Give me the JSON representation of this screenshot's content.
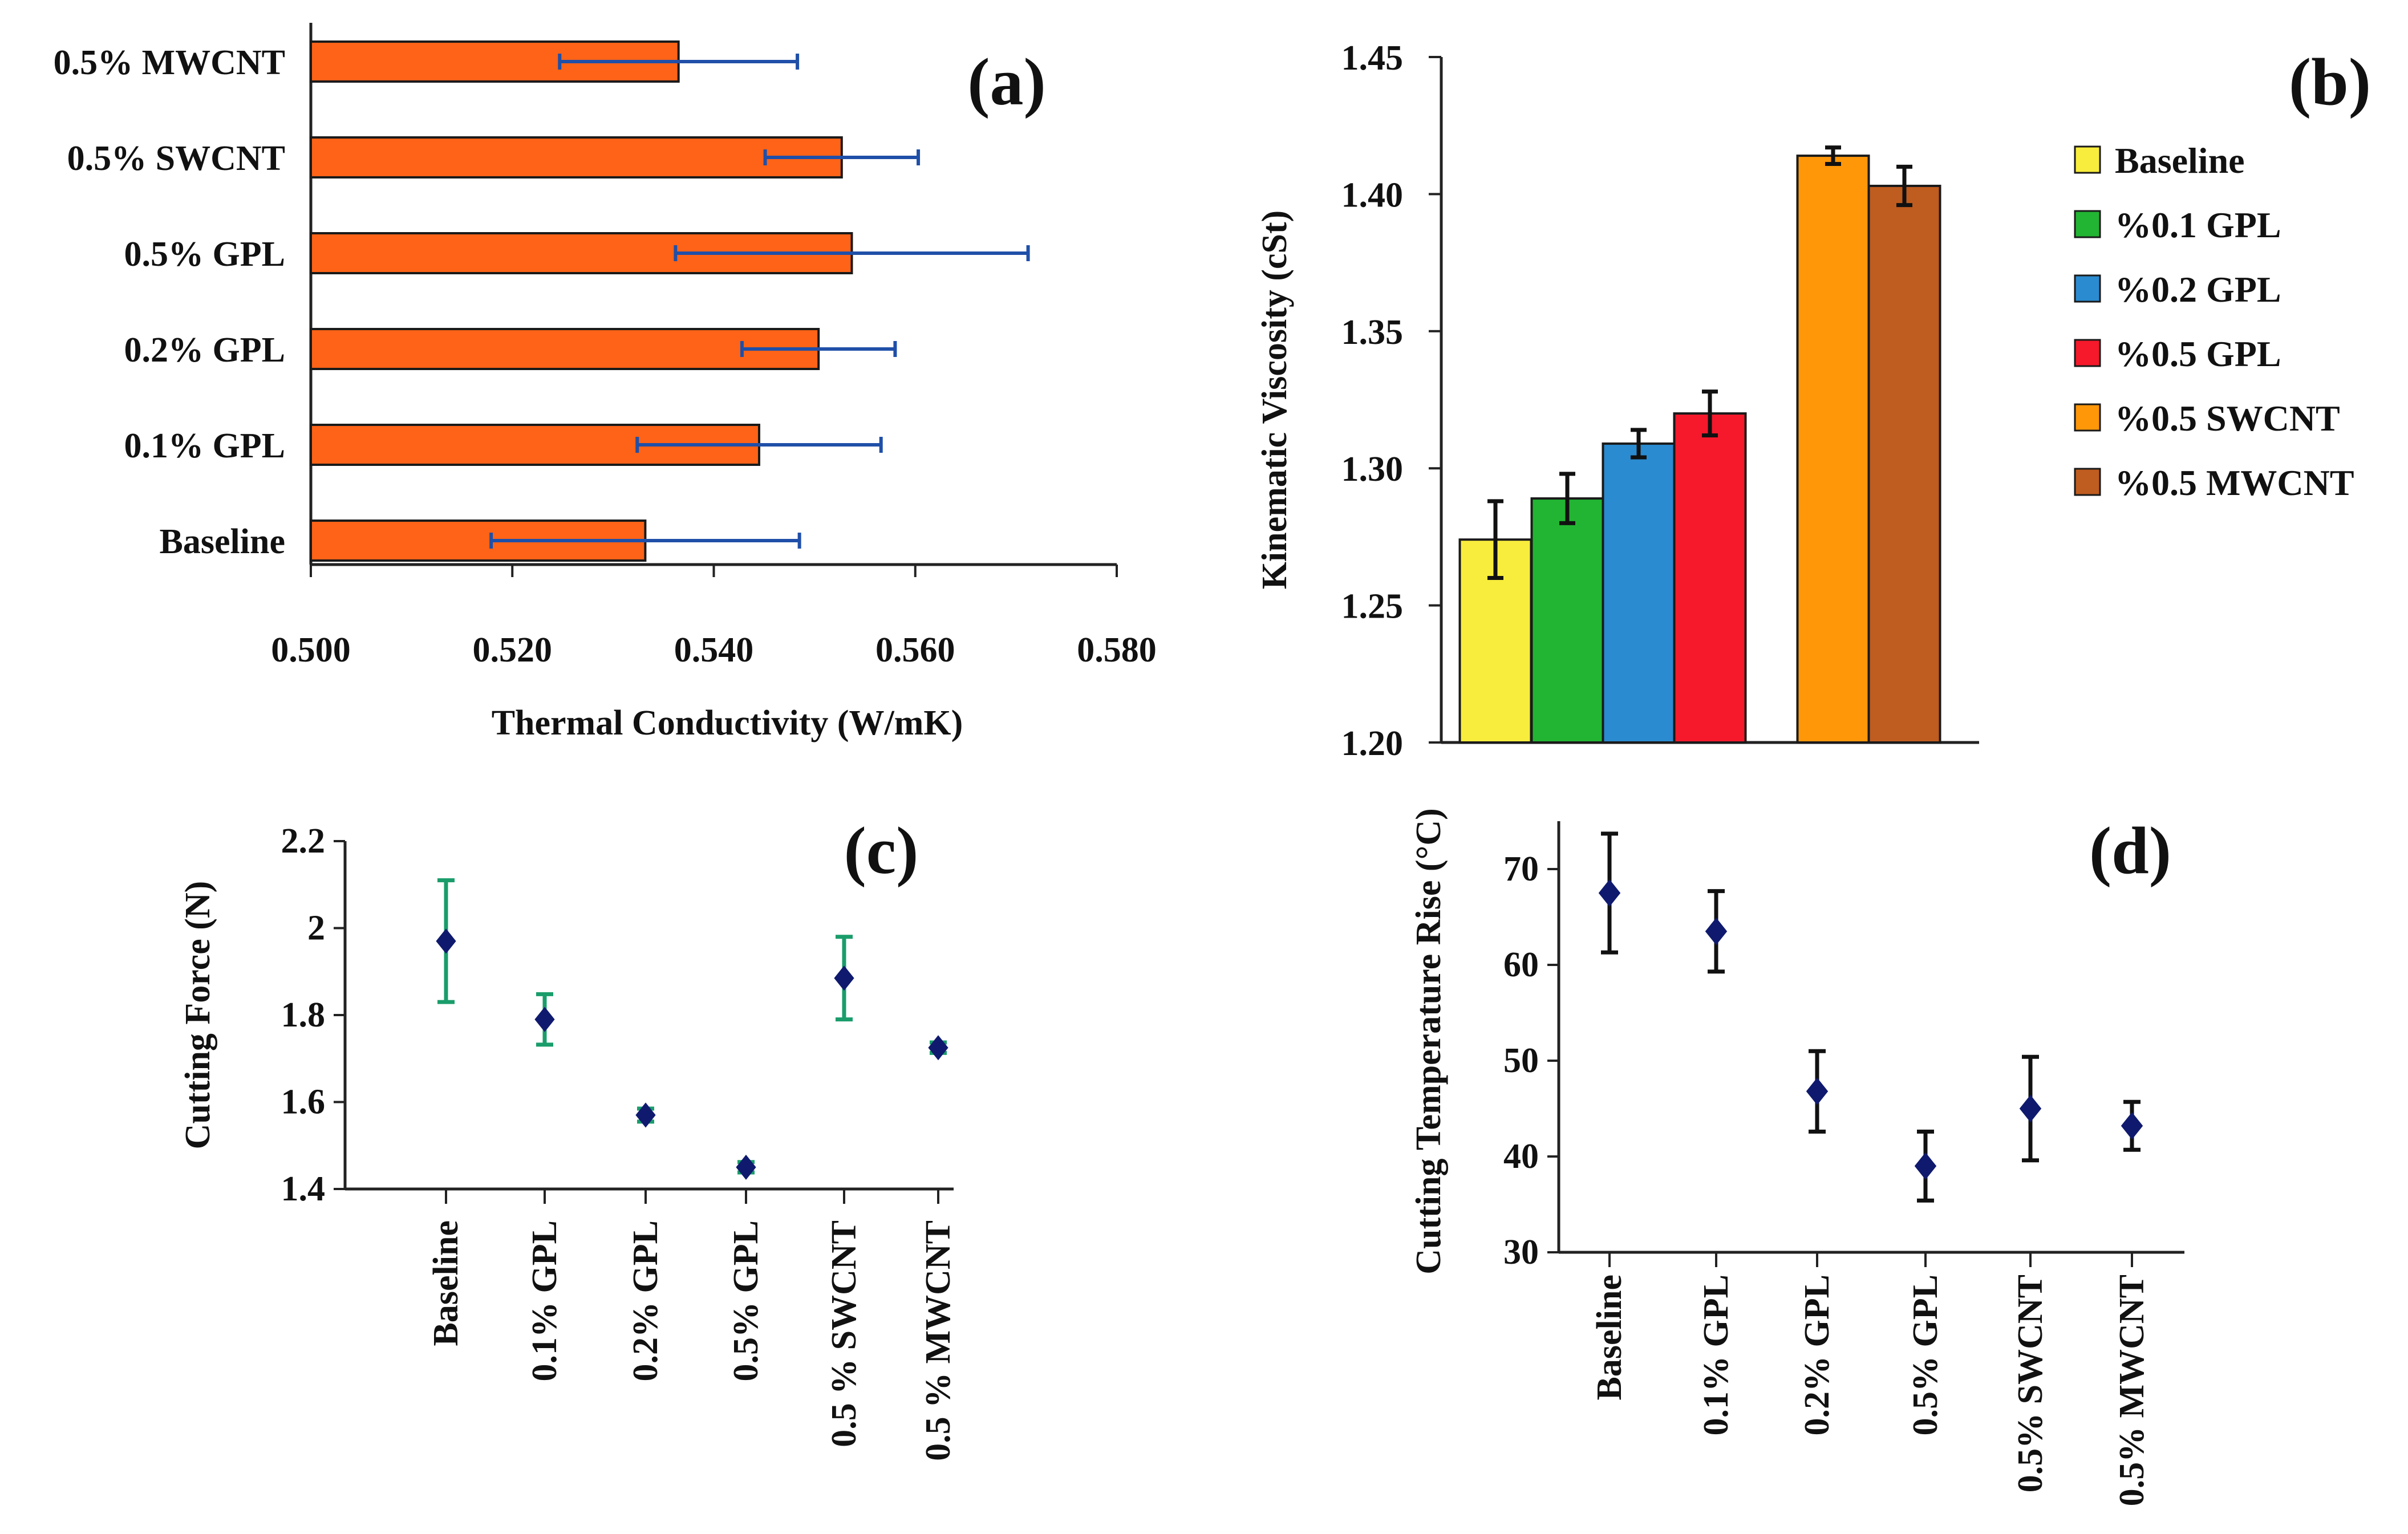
{
  "colors": {
    "bar_a": "#ff6317",
    "errbar_a": "#1f4fa8",
    "errbar_b": "#111111",
    "errbar_c": "#1a9d6b",
    "marker": "#0f1a6e",
    "axis": "#222222",
    "legend": [
      "#f8ed3c",
      "#22b533",
      "#2a8bd0",
      "#f5192b",
      "#ff9709",
      "#bf5c1f"
    ]
  },
  "chart_data": [
    {
      "panel": "(a)",
      "type": "bar",
      "orientation": "horizontal",
      "title": "",
      "xlabel": "Thermal Conductivity (W/mK)",
      "ylabel": "",
      "xlim": [
        0.5,
        0.58
      ],
      "xticks": [
        "0.500",
        "0.520",
        "0.540",
        "0.560",
        "0.580"
      ],
      "xtick_values": [
        0.5,
        0.52,
        0.54,
        0.56,
        0.58
      ],
      "categories": [
        "0.5% MWCNT",
        "0.5% SWCNT",
        "0.5% GPL",
        "0.2% GPL",
        "0.1% GPL",
        "Baseline"
      ],
      "values": [
        0.5365,
        0.5527,
        0.5537,
        0.5504,
        0.5445,
        0.5332
      ],
      "errors": [
        0.0118,
        0.0076,
        0.0175,
        0.0076,
        0.0121,
        0.0153
      ],
      "grid": false,
      "legend": false
    },
    {
      "panel": "(b)",
      "type": "bar",
      "orientation": "vertical",
      "title": "",
      "xlabel": "",
      "ylabel": "Kinematic Viscosity (cSt)",
      "ylim": [
        1.2,
        1.45
      ],
      "yticks": [
        "1.20",
        "1.25",
        "1.30",
        "1.35",
        "1.40",
        "1.45"
      ],
      "ytick_values": [
        1.2,
        1.25,
        1.3,
        1.35,
        1.4,
        1.45
      ],
      "series": [
        {
          "name": "Baseline",
          "value": 1.274,
          "error": 0.014
        },
        {
          "name": "%0.1 GPL",
          "value": 1.289,
          "error": 0.009
        },
        {
          "name": "%0.2 GPL",
          "value": 1.309,
          "error": 0.005
        },
        {
          "name": "%0.5 GPL",
          "value": 1.32,
          "error": 0.008
        },
        {
          "name": "%0.5 SWCNT",
          "value": 1.414,
          "error": 0.003
        },
        {
          "name": "%0.5 MWCNT",
          "value": 1.403,
          "error": 0.007
        }
      ],
      "grid": false,
      "legend": "right"
    },
    {
      "panel": "(c)",
      "type": "scatter",
      "title": "",
      "xlabel": "",
      "ylabel": "Cutting Force (N)",
      "ylim": [
        1.4,
        2.2
      ],
      "yticks": [
        "1.4",
        "1.6",
        "1.8",
        "2",
        "2.2"
      ],
      "ytick_values": [
        1.4,
        1.6,
        1.8,
        2.0,
        2.2
      ],
      "categories": [
        "Baseline",
        "0.1% GPL",
        "0.2% GPL",
        "0.5% GPL",
        "0.5 % SWCNT",
        "0.5 % MWCNT"
      ],
      "values": [
        1.97,
        1.79,
        1.57,
        1.45,
        1.885,
        1.725
      ],
      "errors": [
        0.14,
        0.058,
        0.015,
        0.012,
        0.095,
        0.012
      ],
      "grid": false,
      "legend": false
    },
    {
      "panel": "(d)",
      "type": "scatter",
      "title": "",
      "xlabel": "",
      "ylabel": "Cutting Temperature Rise (°C)",
      "ylim": [
        30,
        75
      ],
      "yticks": [
        "30",
        "40",
        "50",
        "60",
        "70"
      ],
      "ytick_values": [
        30,
        40,
        50,
        60,
        70
      ],
      "categories": [
        "Baseline",
        "0.1% GPL",
        "0.2% GPL",
        "0.5% GPL",
        "0.5% SWCNT",
        "0.5% MWCNT"
      ],
      "values": [
        67.5,
        63.5,
        46.8,
        39.0,
        45.0,
        43.2
      ],
      "errors": [
        6.2,
        4.2,
        4.2,
        3.6,
        5.4,
        2.5
      ],
      "grid": false,
      "legend": false
    }
  ]
}
